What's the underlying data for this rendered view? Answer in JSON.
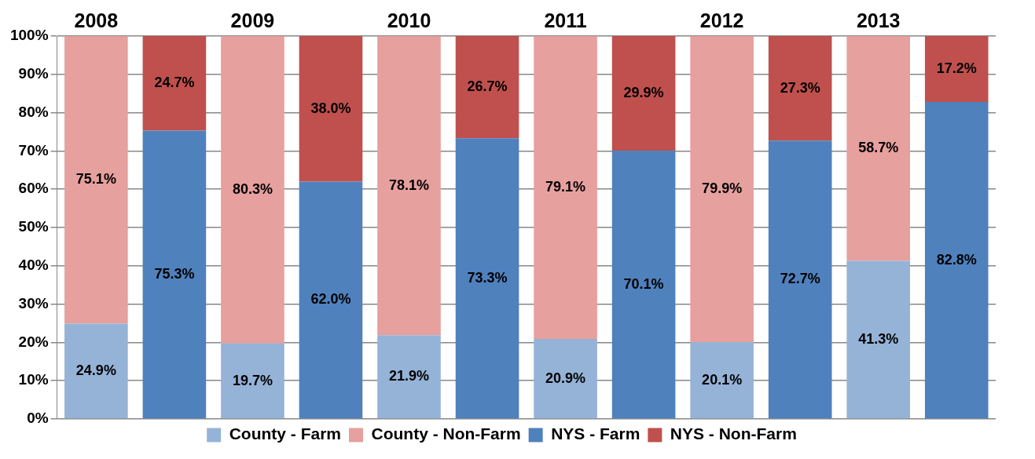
{
  "chart_data": {
    "type": "bar",
    "stacked": true,
    "categories": [
      "2008",
      null,
      "2009",
      null,
      "2010",
      null,
      "2011",
      null,
      "2012",
      null,
      "2013",
      null
    ],
    "series": [
      {
        "name": "County - Farm",
        "color": "#95b3d7",
        "values": [
          24.9,
          null,
          19.7,
          null,
          21.9,
          null,
          20.9,
          null,
          20.1,
          null,
          41.3,
          null
        ],
        "value_labels": [
          "24.9%",
          null,
          "19.7%",
          null,
          "21.9%",
          null,
          "20.9%",
          null,
          "20.1%",
          null,
          "41.3%",
          null
        ]
      },
      {
        "name": "County - Non-Farm",
        "color": "#e6a09e",
        "values": [
          75.1,
          null,
          80.3,
          null,
          78.1,
          null,
          79.1,
          null,
          79.9,
          null,
          58.7,
          null
        ],
        "value_labels": [
          "75.1%",
          null,
          "80.3%",
          null,
          "78.1%",
          null,
          "79.1%",
          null,
          "79.9%",
          null,
          "58.7%",
          null
        ]
      },
      {
        "name": "NYS - Farm",
        "color": "#4f81bd",
        "values": [
          null,
          75.3,
          null,
          62.0,
          null,
          73.3,
          null,
          70.1,
          null,
          72.7,
          null,
          82.8
        ],
        "value_labels": [
          null,
          "75.3%",
          null,
          "62.0%",
          null,
          "73.3%",
          null,
          "70.1%",
          null,
          "72.7%",
          null,
          "82.8%"
        ]
      },
      {
        "name": "NYS - Non-Farm",
        "color": "#c0504d",
        "values": [
          null,
          24.7,
          null,
          38.0,
          null,
          26.7,
          null,
          29.9,
          null,
          27.3,
          null,
          17.2
        ],
        "value_labels": [
          null,
          "24.7%",
          null,
          "38.0%",
          null,
          "26.7%",
          null,
          "29.9%",
          null,
          "27.3%",
          null,
          "17.2%"
        ]
      }
    ],
    "ylim": [
      0,
      100
    ],
    "yticks": [
      {
        "value": 0,
        "label": "0%"
      },
      {
        "value": 10,
        "label": "10%"
      },
      {
        "value": 20,
        "label": "20%"
      },
      {
        "value": 30,
        "label": "30%"
      },
      {
        "value": 40,
        "label": "40%"
      },
      {
        "value": 50,
        "label": "50%"
      },
      {
        "value": 60,
        "label": "60%"
      },
      {
        "value": 70,
        "label": "70%"
      },
      {
        "value": 80,
        "label": "80%"
      },
      {
        "value": 90,
        "label": "90%"
      },
      {
        "value": 100,
        "label": "100%"
      }
    ],
    "grid": "y",
    "legend": "bottom"
  }
}
